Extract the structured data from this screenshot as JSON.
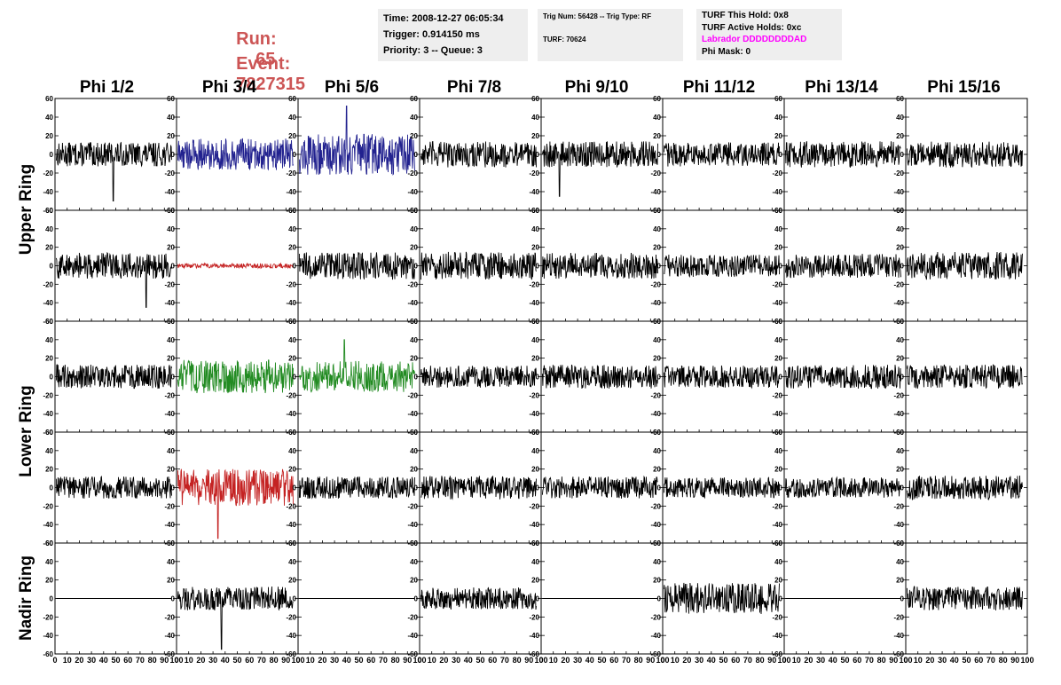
{
  "header": {
    "run_label": "Run:",
    "run_value": "65",
    "event_label": "Event:",
    "event_value": "7827315",
    "time": "Time: 2008-12-27 06:05:34",
    "trigger": "Trigger: 0.914150 ms",
    "priority": "Priority: 3 -- Queue: 3",
    "trig_num": "Trig Num: 56428 -- Trig Type: RF",
    "turf": "TURF: 70624",
    "turf_this_hold": "TURF This Hold: 0x8",
    "turf_active_holds": "TURF Active Holds: 0xc",
    "labrador": "Labrador DDDDDDDDAD",
    "phi_mask": "Phi Mask: 0",
    "labrador_color": "#ff00ff"
  },
  "columns": [
    "Phi 1/2",
    "Phi 3/4",
    "Phi 5/6",
    "Phi 7/8",
    "Phi 9/10",
    "Phi 11/12",
    "Phi 13/14",
    "Phi 15/16"
  ],
  "rings": [
    "Upper Ring",
    "Lower Ring",
    "Nadir Ring"
  ],
  "chart_data": {
    "type": "line",
    "grid": false,
    "xlim": [
      0,
      100
    ],
    "ylim": [
      -60,
      60
    ],
    "x_ticks": [
      0,
      10,
      20,
      30,
      40,
      50,
      60,
      70,
      80,
      90,
      100
    ],
    "y_ticks": [
      -60,
      -40,
      -20,
      0,
      20,
      40,
      60
    ],
    "colors": {
      "default": "#000000",
      "blue": "#22228f",
      "red": "#c42222",
      "green": "#228b22"
    },
    "panels": [
      {
        "row": 0,
        "col": 0,
        "color": "default",
        "amp": 13,
        "spike": -50,
        "spike_x": 48
      },
      {
        "row": 0,
        "col": 1,
        "color": "blue",
        "amp": 17
      },
      {
        "row": 0,
        "col": 2,
        "color": "blue",
        "amp": 22,
        "spike": 52,
        "spike_x": 40
      },
      {
        "row": 0,
        "col": 3,
        "color": "default",
        "amp": 14
      },
      {
        "row": 0,
        "col": 4,
        "color": "default",
        "amp": 14,
        "spike": -45,
        "spike_x": 15
      },
      {
        "row": 0,
        "col": 5,
        "color": "default",
        "amp": 13
      },
      {
        "row": 0,
        "col": 6,
        "color": "default",
        "amp": 14
      },
      {
        "row": 0,
        "col": 7,
        "color": "default",
        "amp": 14
      },
      {
        "row": 1,
        "col": 0,
        "color": "default",
        "amp": 14,
        "spike": -45,
        "spike_x": 75
      },
      {
        "row": 1,
        "col": 1,
        "color": "red",
        "amp": 2.5
      },
      {
        "row": 1,
        "col": 2,
        "color": "default",
        "amp": 15
      },
      {
        "row": 1,
        "col": 3,
        "color": "default",
        "amp": 15
      },
      {
        "row": 1,
        "col": 4,
        "color": "default",
        "amp": 14
      },
      {
        "row": 1,
        "col": 5,
        "color": "default",
        "amp": 12
      },
      {
        "row": 1,
        "col": 6,
        "color": "default",
        "amp": 13
      },
      {
        "row": 1,
        "col": 7,
        "color": "default",
        "amp": 15
      },
      {
        "row": 2,
        "col": 0,
        "color": "default",
        "amp": 13
      },
      {
        "row": 2,
        "col": 1,
        "color": "green",
        "amp": 18
      },
      {
        "row": 2,
        "col": 2,
        "color": "green",
        "amp": 17,
        "spike": 40,
        "spike_x": 38
      },
      {
        "row": 2,
        "col": 3,
        "color": "default",
        "amp": 12
      },
      {
        "row": 2,
        "col": 4,
        "color": "default",
        "amp": 13
      },
      {
        "row": 2,
        "col": 5,
        "color": "default",
        "amp": 12
      },
      {
        "row": 2,
        "col": 6,
        "color": "default",
        "amp": 13
      },
      {
        "row": 2,
        "col": 7,
        "color": "default",
        "amp": 13
      },
      {
        "row": 3,
        "col": 0,
        "color": "default",
        "amp": 12
      },
      {
        "row": 3,
        "col": 1,
        "color": "red",
        "amp": 20,
        "spike": -55,
        "spike_x": 34
      },
      {
        "row": 3,
        "col": 2,
        "color": "default",
        "amp": 12
      },
      {
        "row": 3,
        "col": 3,
        "color": "default",
        "amp": 13
      },
      {
        "row": 3,
        "col": 4,
        "color": "default",
        "amp": 12
      },
      {
        "row": 3,
        "col": 5,
        "color": "default",
        "amp": 11
      },
      {
        "row": 3,
        "col": 6,
        "color": "default",
        "amp": 11
      },
      {
        "row": 3,
        "col": 7,
        "color": "default",
        "amp": 13
      },
      {
        "row": 4,
        "col": 0,
        "color": "default",
        "amp": 0
      },
      {
        "row": 4,
        "col": 1,
        "color": "default",
        "amp": 13,
        "spike": -55,
        "spike_x": 37
      },
      {
        "row": 4,
        "col": 2,
        "color": "default",
        "amp": 0
      },
      {
        "row": 4,
        "col": 3,
        "color": "default",
        "amp": 12
      },
      {
        "row": 4,
        "col": 4,
        "color": "default",
        "amp": 0
      },
      {
        "row": 4,
        "col": 5,
        "color": "default",
        "amp": 17
      },
      {
        "row": 4,
        "col": 6,
        "color": "default",
        "amp": 0
      },
      {
        "row": 4,
        "col": 7,
        "color": "default",
        "amp": 13
      }
    ]
  }
}
